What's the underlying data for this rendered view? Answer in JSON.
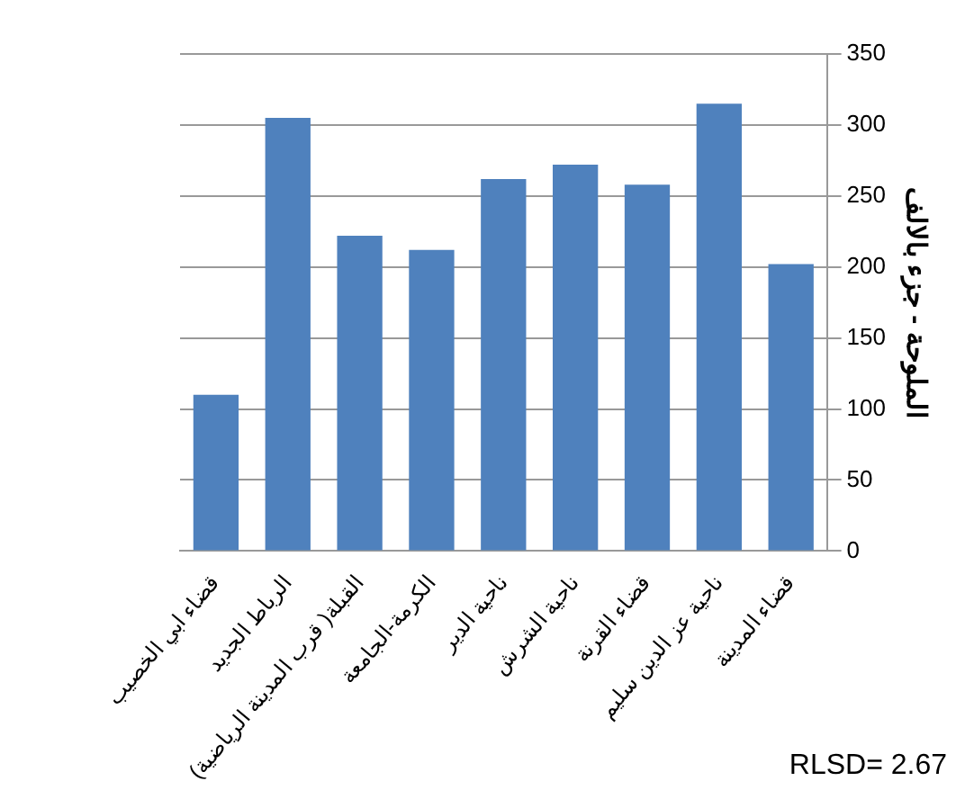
{
  "chart_data": {
    "type": "bar",
    "ylabel": "الملوحة - جزء بالالف",
    "categories": [
      "قضاء ابي الخصيب",
      "الرباط الجديد",
      "القبلة( قرب المدينة الرياضية)",
      "الكرمة-الجامعة",
      "ناحية الدير",
      "ناحية الشرش",
      "قضاء القرنة",
      "ناحية عز الدين سليم",
      "قضاء المدينة"
    ],
    "values": [
      110,
      305,
      222,
      212,
      262,
      272,
      258,
      315,
      202
    ],
    "color": "#4f81bd",
    "ylim": [
      0,
      350
    ],
    "yticks": [
      0,
      50,
      100,
      150,
      200,
      250,
      300,
      350
    ],
    "grid": "y",
    "annotations": [
      "RLSD= 2.67"
    ]
  }
}
